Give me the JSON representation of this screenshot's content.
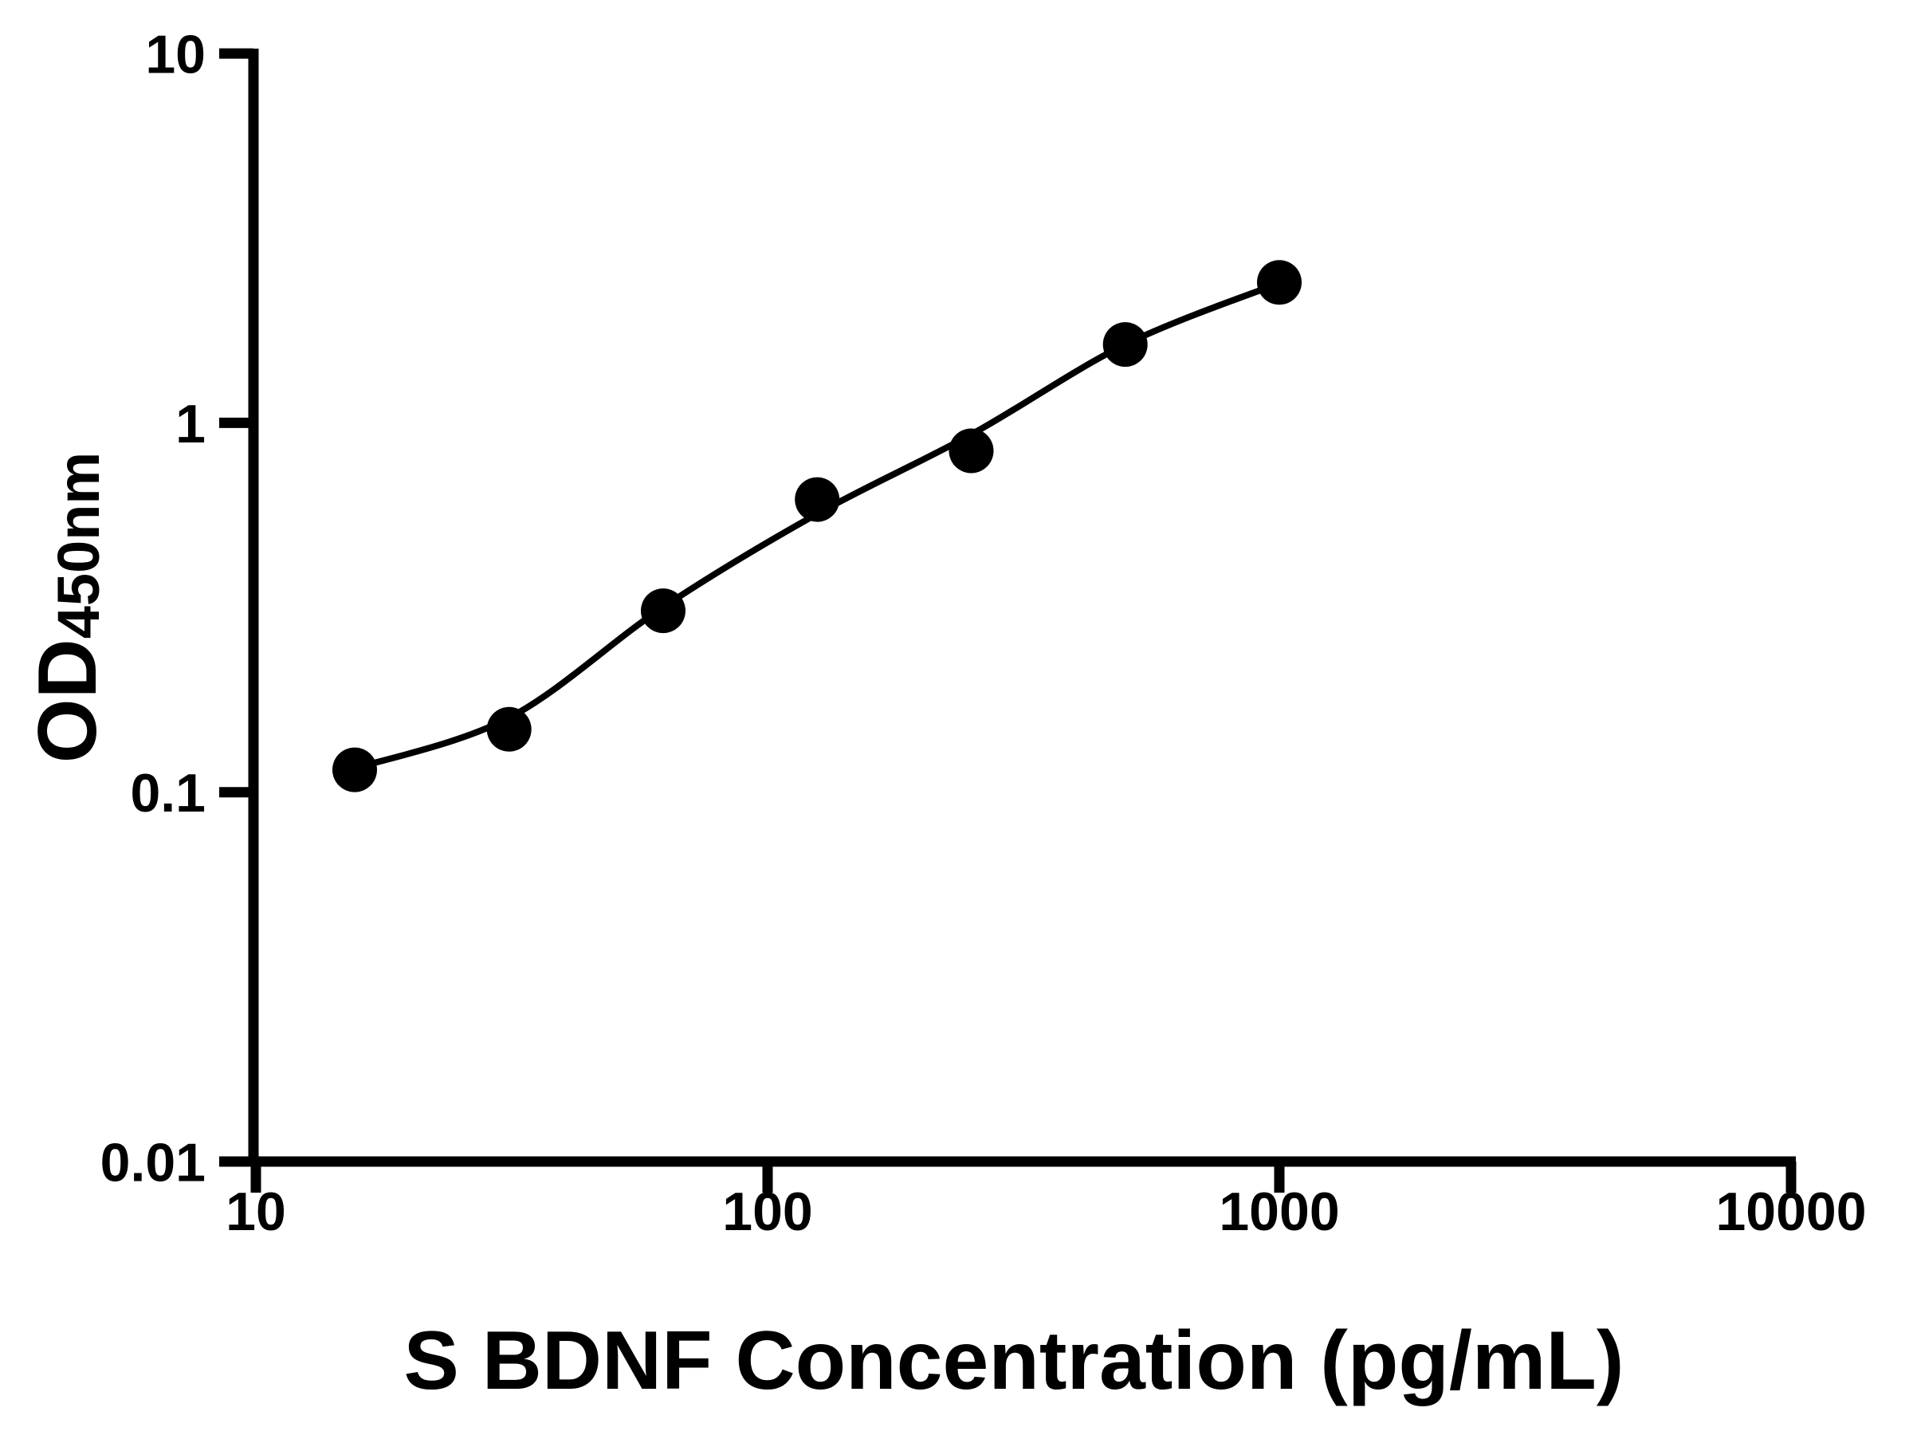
{
  "figure": {
    "background_color": "#ffffff",
    "foreground_color": "#000000"
  },
  "chart_data": {
    "type": "scatter",
    "title": "",
    "xlabel": "S BDNF Concentration (pg/mL)",
    "ylabel": "OD450nm",
    "ylabel_main": "OD",
    "ylabel_sub": "450nm",
    "xscale": "log",
    "yscale": "log",
    "xlim": [
      10,
      10000
    ],
    "ylim": [
      0.01,
      10
    ],
    "grid": false,
    "legend": false,
    "x_tick_values": [
      10,
      100,
      1000,
      10000
    ],
    "x_tick_labels": [
      "10",
      "100",
      "1000",
      "10000"
    ],
    "y_tick_values": [
      10,
      1,
      0.1,
      0.01
    ],
    "y_tick_labels": [
      "10",
      "1",
      "0.1",
      "0.01"
    ],
    "x": [
      15.6,
      31.25,
      62.5,
      125,
      250,
      500,
      1000
    ],
    "y": [
      0.115,
      0.148,
      0.31,
      0.62,
      0.84,
      1.63,
      2.4
    ],
    "fit_y": [
      0.116,
      0.159,
      0.317,
      0.567,
      0.93,
      1.63,
      2.39
    ],
    "marker": "filled-circle",
    "marker_color": "#000000",
    "line_color": "#000000"
  }
}
